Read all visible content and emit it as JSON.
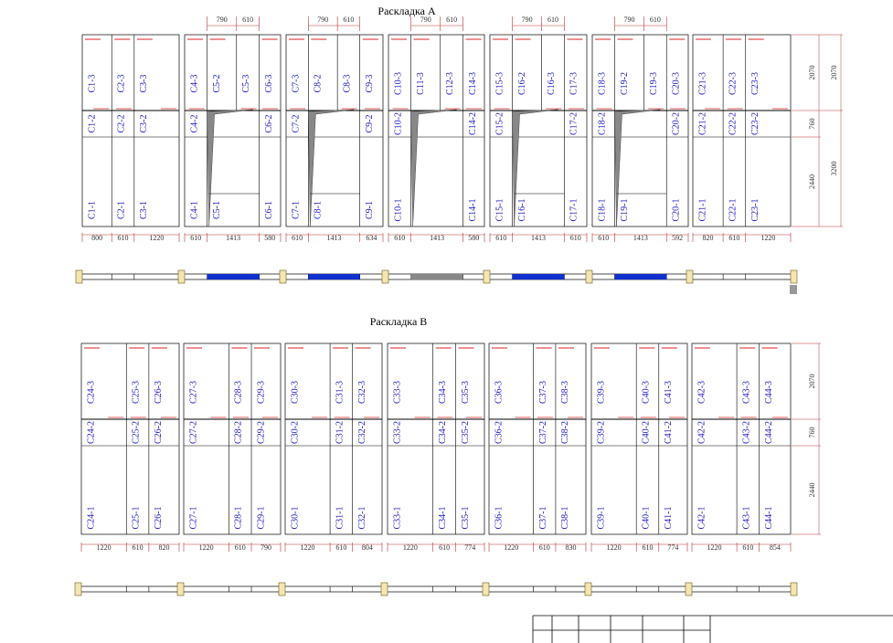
{
  "layouts": [
    {
      "title": "Раскладка А",
      "side_dims": [
        2070,
        760,
        2440
      ],
      "outer_dims": [
        2070,
        3200
      ],
      "bays": [
        {
          "top": [
            "C1-3",
            "C2-3",
            "C3-3"
          ],
          "mid": [
            "C1-2",
            "C2-2",
            "C3-2"
          ],
          "bottom": [
            "C1-1",
            "C2-1",
            "C3-1"
          ],
          "dims": [
            800,
            610,
            1220
          ]
        },
        {
          "top_dims": [
            790,
            610
          ],
          "top": [
            "C4-3",
            "C5-2",
            "C5-3",
            "C6-3"
          ],
          "mid": [
            "C4-2",
            "C6-2"
          ],
          "bottom": [
            "C4-1",
            "C5-1",
            "C6-1"
          ],
          "dims": [
            610,
            1413,
            580
          ]
        },
        {
          "top_dims": [
            790,
            610
          ],
          "top": [
            "C7-3",
            "C8-2",
            "C8-3",
            "C9-3"
          ],
          "mid": [
            "C7-2",
            "C9-2"
          ],
          "bottom": [
            "C7-1",
            "C8-1",
            "C9-1"
          ],
          "dims": [
            610,
            1413,
            634
          ]
        },
        {
          "top_dims": [
            790,
            610
          ],
          "top": [
            "C10-3",
            "C11-3",
            "C12-3",
            "C14-3"
          ],
          "mid": [
            "C10-2",
            "C14-2"
          ],
          "bottom": [
            "C10-1",
            "C14-1"
          ],
          "dims": [
            610,
            1413,
            580
          ]
        },
        {
          "top_dims": [
            790,
            610
          ],
          "top": [
            "C15-3",
            "C16-2",
            "C16-3",
            "C17-3"
          ],
          "mid": [
            "C15-2",
            "C17-2"
          ],
          "bottom": [
            "C15-1",
            "C16-1",
            "C17-1"
          ],
          "dims": [
            610,
            1413,
            610
          ]
        },
        {
          "top_dims": [
            790,
            610
          ],
          "top": [
            "C18-3",
            "C19-2",
            "C19-3",
            "C20-3"
          ],
          "mid": [
            "C18-2",
            "C20-2"
          ],
          "bottom": [
            "C18-1",
            "C19-1",
            "C20-1"
          ],
          "dims": [
            610,
            1413,
            592
          ]
        },
        {
          "top": [
            "C21-3",
            "C22-3",
            "C23-3"
          ],
          "mid": [
            "C21-2",
            "C22-2",
            "C23-2"
          ],
          "bottom": [
            "C21-1",
            "C22-1",
            "C23-1"
          ],
          "dims": [
            820,
            610,
            1220
          ]
        }
      ]
    },
    {
      "title": "Раскладка В",
      "side_dims": [
        2070,
        760,
        2440
      ],
      "bays": [
        {
          "top": [
            "C24-3",
            "C25-3",
            "C26-3"
          ],
          "mid": [
            "C24-2",
            "C25-2",
            "C26-2"
          ],
          "bottom": [
            "C24-1",
            "C25-1",
            "C26-1"
          ],
          "dims": [
            1220,
            610,
            820
          ]
        },
        {
          "top": [
            "C27-3",
            "C28-3",
            "C29-3"
          ],
          "mid": [
            "C27-2",
            "C28-2",
            "C29-2"
          ],
          "bottom": [
            "C27-1",
            "C28-1",
            "C29-1"
          ],
          "dims": [
            1220,
            610,
            790
          ]
        },
        {
          "top": [
            "C30-3",
            "C31-3",
            "C32-3"
          ],
          "mid": [
            "C30-2",
            "C31-2",
            "C32-2"
          ],
          "bottom": [
            "C30-1",
            "C31-1",
            "C32-1"
          ],
          "dims": [
            1220,
            610,
            804
          ]
        },
        {
          "top": [
            "C33-3",
            "C34-3",
            "C35-3"
          ],
          "mid": [
            "C33-2",
            "C34-2",
            "C35-2"
          ],
          "bottom": [
            "C33-1",
            "C34-1",
            "C35-1"
          ],
          "dims": [
            1220,
            610,
            774
          ]
        },
        {
          "top": [
            "C36-3",
            "C37-3",
            "C38-3"
          ],
          "mid": [
            "C36-2",
            "C37-2",
            "C38-2"
          ],
          "bottom": [
            "C36-1",
            "C37-1",
            "C38-1"
          ],
          "dims": [
            1220,
            610,
            830
          ]
        },
        {
          "top": [
            "C39-3",
            "C40-3",
            "C41-3"
          ],
          "mid": [
            "C39-2",
            "C40-2",
            "C41-2"
          ],
          "bottom": [
            "C39-1",
            "C40-1",
            "C41-1"
          ],
          "dims": [
            1220,
            610,
            774
          ]
        },
        {
          "top": [
            "C42-3",
            "C43-3",
            "C44-3"
          ],
          "mid": [
            "C42-2",
            "C43-2",
            "C44-2"
          ],
          "bottom": [
            "C42-1",
            "C43-1",
            "C44-1"
          ],
          "dims": [
            1220,
            610,
            854
          ]
        }
      ]
    }
  ]
}
